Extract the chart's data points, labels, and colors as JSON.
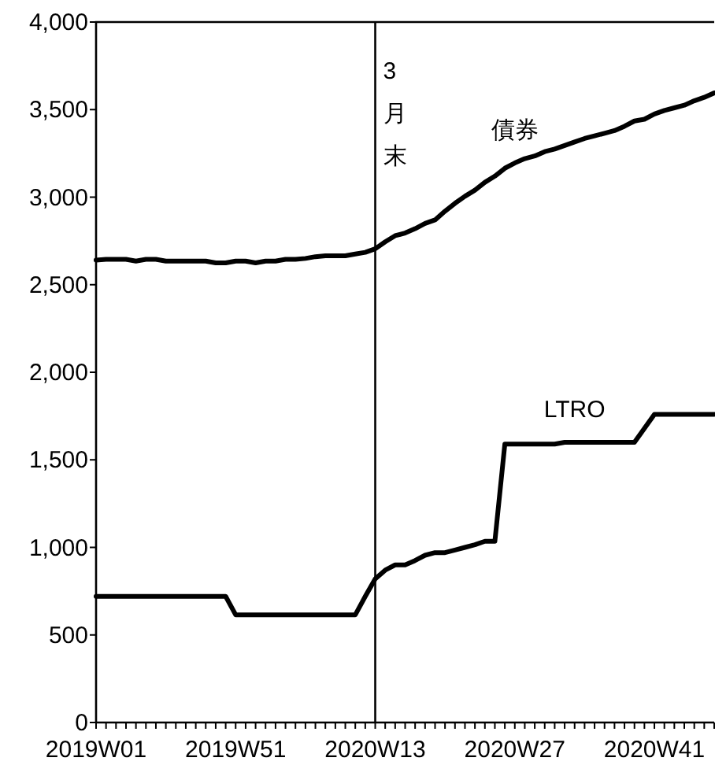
{
  "chart_data": {
    "type": "line",
    "categories": [
      "2019W01",
      null,
      null,
      null,
      null,
      null,
      null,
      null,
      null,
      null,
      null,
      null,
      null,
      null,
      "2019W51",
      null,
      null,
      null,
      null,
      null,
      null,
      null,
      null,
      null,
      null,
      null,
      null,
      null,
      "2020W13",
      null,
      null,
      null,
      null,
      null,
      null,
      null,
      null,
      null,
      null,
      null,
      null,
      null,
      "2020W27",
      null,
      null,
      null,
      null,
      null,
      null,
      null,
      null,
      null,
      null,
      null,
      null,
      null,
      "2020W41",
      null,
      null,
      null,
      null,
      null,
      null
    ],
    "series": [
      {
        "name": "債券",
        "color": "#000000",
        "values": [
          2640,
          2645,
          2645,
          2645,
          2635,
          2645,
          2645,
          2635,
          2635,
          2635,
          2635,
          2635,
          2625,
          2625,
          2635,
          2635,
          2625,
          2635,
          2635,
          2645,
          2645,
          2650,
          2660,
          2665,
          2665,
          2665,
          2675,
          2685,
          2705,
          2745,
          2780,
          2795,
          2820,
          2850,
          2870,
          2920,
          2965,
          3005,
          3040,
          3085,
          3120,
          3165,
          3195,
          3220,
          3235,
          3260,
          3275,
          3295,
          3315,
          3335,
          3350,
          3365,
          3380,
          3405,
          3435,
          3445,
          3475,
          3495,
          3510,
          3525,
          3550,
          3570,
          3595
        ]
      },
      {
        "name": "LTRO",
        "color": "#000000",
        "values": [
          720,
          720,
          720,
          720,
          720,
          720,
          720,
          720,
          720,
          720,
          720,
          720,
          720,
          720,
          615,
          615,
          615,
          615,
          615,
          615,
          615,
          615,
          615,
          615,
          615,
          615,
          615,
          720,
          820,
          870,
          900,
          900,
          925,
          955,
          970,
          970,
          985,
          1000,
          1015,
          1035,
          1035,
          1590,
          1590,
          1590,
          1590,
          1590,
          1590,
          1600,
          1600,
          1600,
          1600,
          1600,
          1600,
          1600,
          1600,
          1680,
          1760,
          1760,
          1760,
          1760,
          1760,
          1760,
          1760
        ]
      }
    ],
    "ylim": [
      0,
      4000
    ],
    "yticks": [
      0,
      {
        "value": 500,
        "label": "500"
      },
      {
        "value": 1000,
        "label": "1,000"
      },
      {
        "value": 1500,
        "label": "1,500"
      },
      {
        "value": 2000,
        "label": "2,000"
      },
      {
        "value": 2500,
        "label": "2,500"
      },
      {
        "value": 3000,
        "label": "3,000"
      },
      {
        "value": 3500,
        "label": "3,500"
      },
      {
        "value": 4000,
        "label": "4,000"
      }
    ],
    "ref_lines": [
      {
        "axis": "x",
        "value": "2020W13",
        "label": "3月末",
        "color": "#000000"
      }
    ]
  }
}
